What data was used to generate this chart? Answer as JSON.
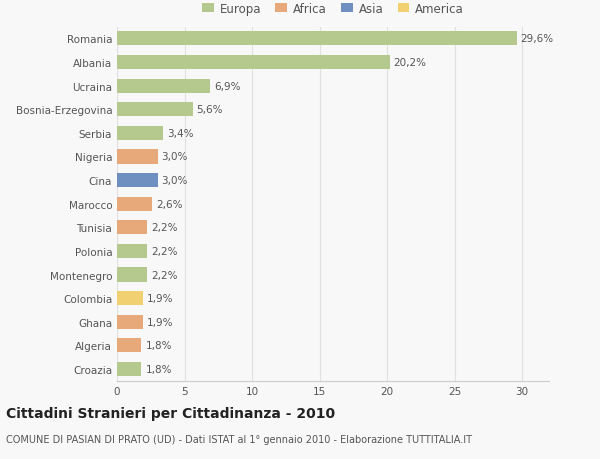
{
  "countries": [
    "Romania",
    "Albania",
    "Ucraina",
    "Bosnia-Erzegovina",
    "Serbia",
    "Nigeria",
    "Cina",
    "Marocco",
    "Tunisia",
    "Polonia",
    "Montenegro",
    "Colombia",
    "Ghana",
    "Algeria",
    "Croazia"
  ],
  "values": [
    29.6,
    20.2,
    6.9,
    5.6,
    3.4,
    3.0,
    3.0,
    2.6,
    2.2,
    2.2,
    2.2,
    1.9,
    1.9,
    1.8,
    1.8
  ],
  "labels": [
    "29,6%",
    "20,2%",
    "6,9%",
    "5,6%",
    "3,4%",
    "3,0%",
    "3,0%",
    "2,6%",
    "2,2%",
    "2,2%",
    "2,2%",
    "1,9%",
    "1,9%",
    "1,8%",
    "1,8%"
  ],
  "continents": [
    "Europa",
    "Europa",
    "Europa",
    "Europa",
    "Europa",
    "Africa",
    "Asia",
    "Africa",
    "Africa",
    "Europa",
    "Europa",
    "America",
    "Africa",
    "Africa",
    "Europa"
  ],
  "continent_colors": {
    "Europa": "#b5c98e",
    "Africa": "#e8a97a",
    "Asia": "#6e8fc0",
    "America": "#f0d070"
  },
  "legend_order": [
    "Europa",
    "Africa",
    "Asia",
    "America"
  ],
  "xlim": [
    0,
    32
  ],
  "xticks": [
    0,
    5,
    10,
    15,
    20,
    25,
    30
  ],
  "title": "Cittadini Stranieri per Cittadinanza - 2010",
  "subtitle": "COMUNE DI PASIAN DI PRATO (UD) - Dati ISTAT al 1° gennaio 2010 - Elaborazione TUTTITALIA.IT",
  "background_color": "#f8f8f8",
  "grid_color": "#e0e0e0",
  "bar_height": 0.6,
  "label_fontsize": 7.5,
  "tick_fontsize": 7.5,
  "title_fontsize": 10,
  "subtitle_fontsize": 7
}
